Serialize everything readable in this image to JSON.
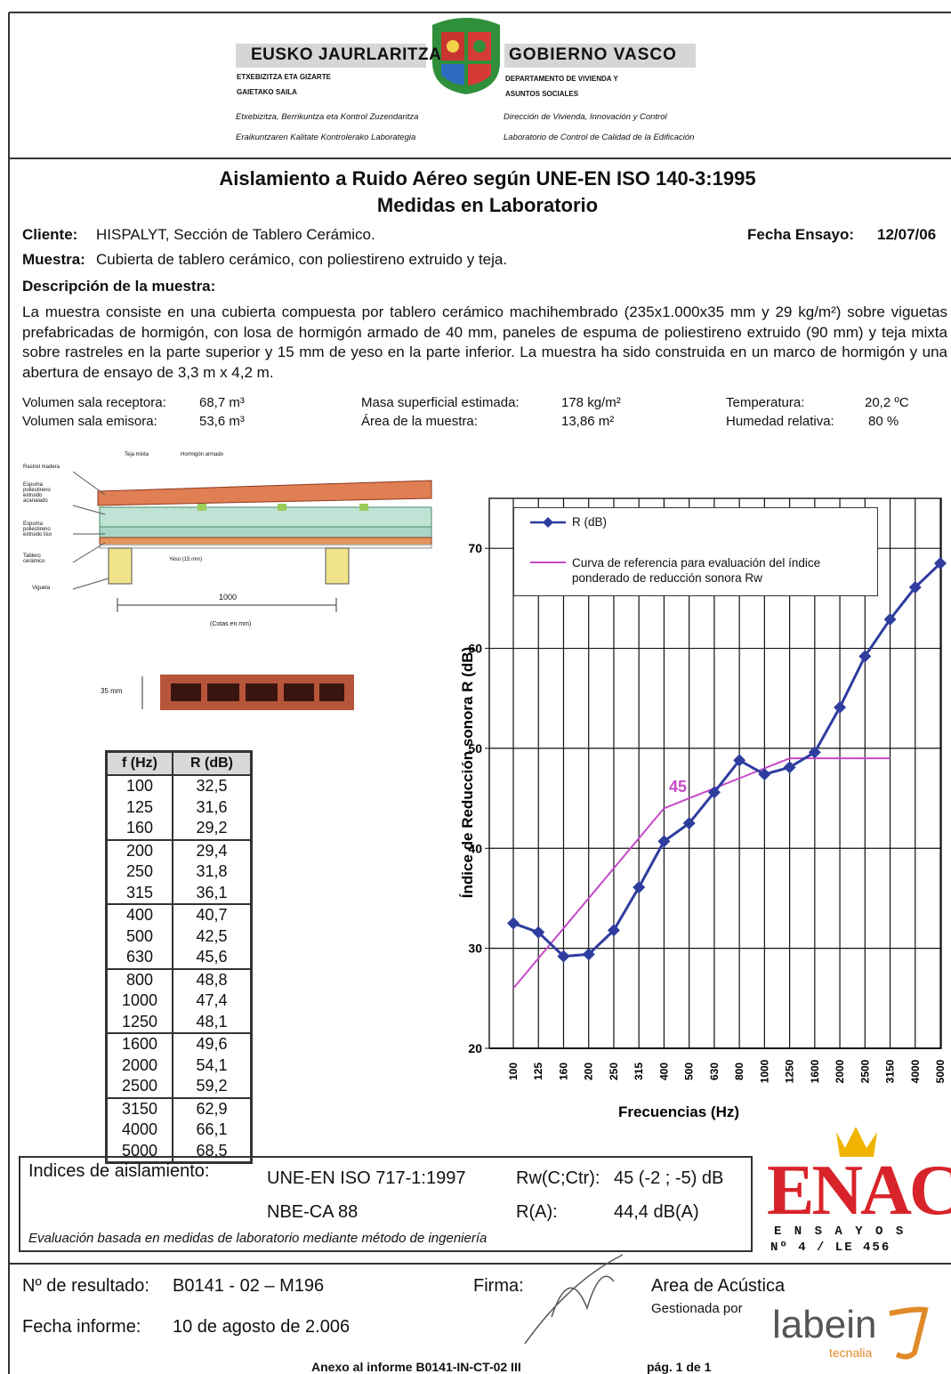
{
  "header": {
    "left_name": "EUSKO JAURLARITZA",
    "left_dept": [
      "ETXEBIZITZA ETA GIZARTE",
      "GAIETAKO SAILA"
    ],
    "right_name": "GOBIERNO VASCO",
    "right_dept": [
      "DEPARTAMENTO DE VIVIENDA Y",
      "ASUNTOS SOCIALES"
    ],
    "left_lines": [
      "Etxebizitza, Berrikuntza eta Kontrol Zuzendaritza",
      "Eraikuntzaren Kalitate Kontrolerako Laborategia"
    ],
    "right_lines": [
      "Dirección de Vivienda, Innovación y Control",
      "Laboratorio de Control de Calidad de la Edificación"
    ]
  },
  "title": [
    "Aislamiento a Ruido Aéreo según UNE-EN ISO 140-3:1995",
    "Medidas en Laboratorio"
  ],
  "client": {
    "label": "Cliente:",
    "value": "HISPALYT, Sección de Tablero Cerámico."
  },
  "test_date": {
    "label": "Fecha Ensayo:",
    "value": "12/07/06"
  },
  "sample": {
    "label": "Muestra:",
    "value": "Cubierta de tablero cerámico, con poliestireno extruido y teja."
  },
  "description": {
    "label": "Descripción de la muestra:",
    "text": "La muestra consiste en una cubierta compuesta por tablero cerámico machihembrado (235x1.000x35 mm y 29 kg/m²) sobre viguetas prefabricadas de hormigón, con losa de hormigón armado de 40 mm, paneles de espuma de poliestireno extruido (90 mm) y teja mixta sobre rastreles en la parte superior y 15 mm de yeso en la parte inferior. La muestra ha sido construida en un marco de hormigón y una abertura de ensayo de 3,3 m x 4,2 m."
  },
  "params": [
    {
      "label": "Volumen sala receptora:",
      "value": "68,7  m³"
    },
    {
      "label": "Volumen sala emisora:",
      "value": "53,6  m³"
    },
    {
      "label": "Masa superficial estimada:",
      "value": "178 kg/m²"
    },
    {
      "label": "Área de la muestra:",
      "value": "13,86  m²"
    },
    {
      "label": "Temperatura:",
      "value": "20,2 ºC"
    },
    {
      "label": "Humedad relativa:",
      "value": "80 %"
    }
  ],
  "diagram": {
    "labels": [
      "Teja mixta",
      "Hormigón armado",
      "Rastrel madera",
      "Espuma poliestireno extruido acanalado",
      "Espuma poliestireno extruido liso",
      "Tablero cerámico",
      "Vigueta",
      "Yeso (15 mm)",
      "1000",
      "(Cotas en mm)",
      "35 mm"
    ]
  },
  "table": {
    "header": [
      "f (Hz)",
      "R (dB)"
    ],
    "rows": [
      [
        "100",
        "32,5"
      ],
      [
        "125",
        "31,6"
      ],
      [
        "160",
        "29,2"
      ],
      [
        "200",
        "29,4"
      ],
      [
        "250",
        "31,8"
      ],
      [
        "315",
        "36,1"
      ],
      [
        "400",
        "40,7"
      ],
      [
        "500",
        "42,5"
      ],
      [
        "630",
        "45,6"
      ],
      [
        "800",
        "48,8"
      ],
      [
        "1000",
        "47,4"
      ],
      [
        "1250",
        "48,1"
      ],
      [
        "1600",
        "49,6"
      ],
      [
        "2000",
        "54,1"
      ],
      [
        "2500",
        "59,2"
      ],
      [
        "3150",
        "62,9"
      ],
      [
        "4000",
        "66,1"
      ],
      [
        "5000",
        "68,5"
      ]
    ]
  },
  "chart_data": {
    "type": "line",
    "x_label": "Frecuencias (Hz)",
    "y_label": "Índice de Reducción sonora R (dB)",
    "categories": [
      "100",
      "125",
      "160",
      "200",
      "250",
      "315",
      "400",
      "500",
      "630",
      "800",
      "1000",
      "1250",
      "1600",
      "2000",
      "2500",
      "3150",
      "4000",
      "5000"
    ],
    "series": [
      {
        "name": "R (dB)",
        "color": "#2e3d9e",
        "marker": "diamond",
        "values": [
          32.5,
          31.6,
          29.2,
          29.4,
          31.8,
          36.1,
          40.7,
          42.5,
          45.6,
          48.8,
          47.4,
          48.1,
          49.6,
          54.1,
          59.2,
          62.9,
          66.1,
          68.5
        ]
      },
      {
        "name": "Curva de referencia para evaluación del índice ponderado de reducción sonora Rw",
        "color": "#c548c5",
        "values": [
          26,
          29,
          32,
          35,
          38,
          41,
          44,
          45,
          46,
          47,
          48,
          49,
          49,
          49,
          49,
          49,
          null,
          null
        ]
      }
    ],
    "annotation": "45",
    "ylim": [
      20,
      75
    ],
    "yticks": [
      20,
      30,
      40,
      50,
      60,
      70
    ],
    "grid": true
  },
  "indices": {
    "label": "Indices de aislamiento:",
    "rows": [
      [
        "UNE-EN ISO 717-1:1997",
        "Rw(C;Ctr):",
        "45 (-2 ; -5) dB"
      ],
      [
        "NBE-CA 88",
        "R(A):",
        "44,4 dB(A)"
      ]
    ],
    "note": "Evaluación basada en medidas de laboratorio mediante método de ingeniería"
  },
  "enac": {
    "name": "ENAC",
    "sub": "E N S A Y O S",
    "number": "Nº 4 / LE 456"
  },
  "footer": {
    "result": {
      "label": "Nº de resultado:",
      "value": "B0141 - 02 – M196"
    },
    "report_date": {
      "label": "Fecha informe:",
      "value": "10 de agosto de 2.006"
    },
    "signature": "Firma:",
    "area": "Area de Acústica",
    "managed": "Gestionada por",
    "lab": "labein",
    "lab_sub": "tecnalia",
    "annex": "Anexo al informe B0141-IN-CT-02 III",
    "page": "pág. 1 de 1"
  }
}
